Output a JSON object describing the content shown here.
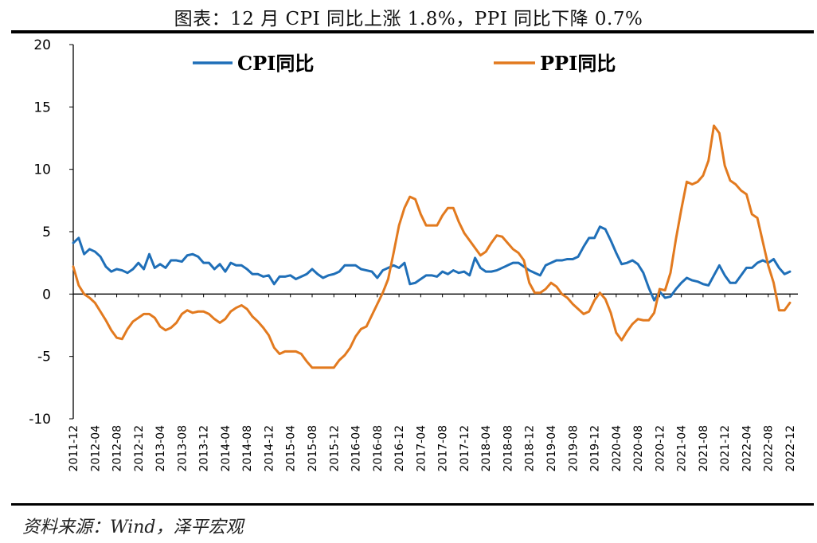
{
  "title": "图表：12 月 CPI 同比上涨 1.8%，PPI 同比下降 0.7%",
  "source": "资料来源：Wind，泽平宏观",
  "colors": {
    "cpi": "#1f6fb8",
    "ppi": "#e27a1f"
  },
  "chart_data": {
    "type": "line",
    "title": "",
    "xlabel": "",
    "ylabel": "",
    "ylim": [
      -10,
      20
    ],
    "yticks": [
      -10,
      -5,
      0,
      5,
      10,
      15,
      20
    ],
    "legend_position": "top",
    "grid": false,
    "x": [
      "2011-12",
      "2012-01",
      "2012-02",
      "2012-03",
      "2012-04",
      "2012-05",
      "2012-06",
      "2012-07",
      "2012-08",
      "2012-09",
      "2012-10",
      "2012-11",
      "2012-12",
      "2013-01",
      "2013-02",
      "2013-03",
      "2013-04",
      "2013-05",
      "2013-06",
      "2013-07",
      "2013-08",
      "2013-09",
      "2013-10",
      "2013-11",
      "2013-12",
      "2014-01",
      "2014-02",
      "2014-03",
      "2014-04",
      "2014-05",
      "2014-06",
      "2014-07",
      "2014-08",
      "2014-09",
      "2014-10",
      "2014-11",
      "2014-12",
      "2015-01",
      "2015-02",
      "2015-03",
      "2015-04",
      "2015-05",
      "2015-06",
      "2015-07",
      "2015-08",
      "2015-09",
      "2015-10",
      "2015-11",
      "2015-12",
      "2016-01",
      "2016-02",
      "2016-03",
      "2016-04",
      "2016-05",
      "2016-06",
      "2016-07",
      "2016-08",
      "2016-09",
      "2016-10",
      "2016-11",
      "2016-12",
      "2017-01",
      "2017-02",
      "2017-03",
      "2017-04",
      "2017-05",
      "2017-06",
      "2017-07",
      "2017-08",
      "2017-09",
      "2017-10",
      "2017-11",
      "2017-12",
      "2018-01",
      "2018-02",
      "2018-03",
      "2018-04",
      "2018-05",
      "2018-06",
      "2018-07",
      "2018-08",
      "2018-09",
      "2018-10",
      "2018-11",
      "2018-12",
      "2019-01",
      "2019-02",
      "2019-03",
      "2019-04",
      "2019-05",
      "2019-06",
      "2019-07",
      "2019-08",
      "2019-09",
      "2019-10",
      "2019-11",
      "2019-12",
      "2020-01",
      "2020-02",
      "2020-03",
      "2020-04",
      "2020-05",
      "2020-06",
      "2020-07",
      "2020-08",
      "2020-09",
      "2020-10",
      "2020-11",
      "2020-12",
      "2021-01",
      "2021-02",
      "2021-03",
      "2021-04",
      "2021-05",
      "2021-06",
      "2021-07",
      "2021-08",
      "2021-09",
      "2021-10",
      "2021-11",
      "2021-12",
      "2022-01",
      "2022-02",
      "2022-03",
      "2022-04",
      "2022-05",
      "2022-06",
      "2022-07",
      "2022-08",
      "2022-09",
      "2022-10",
      "2022-11",
      "2022-12"
    ],
    "xtick_labels": [
      "2011-12",
      "2012-04",
      "2012-08",
      "2012-12",
      "2013-04",
      "2013-08",
      "2013-12",
      "2014-04",
      "2014-08",
      "2014-12",
      "2015-04",
      "2015-08",
      "2015-12",
      "2016-04",
      "2016-08",
      "2016-12",
      "2017-04",
      "2017-08",
      "2017-12",
      "2018-04",
      "2018-08",
      "2018-12",
      "2019-04",
      "2019-08",
      "2019-12",
      "2020-04",
      "2020-08",
      "2020-12",
      "2021-04",
      "2021-08",
      "2021-12",
      "2022-04",
      "2022-08",
      "2022-12"
    ],
    "series": [
      {
        "name": "CPI同比",
        "color": "#1f6fb8",
        "values": [
          4.1,
          4.5,
          3.2,
          3.6,
          3.4,
          3.0,
          2.2,
          1.8,
          2.0,
          1.9,
          1.7,
          2.0,
          2.5,
          2.0,
          3.2,
          2.1,
          2.4,
          2.1,
          2.7,
          2.7,
          2.6,
          3.1,
          3.2,
          3.0,
          2.5,
          2.5,
          2.0,
          2.4,
          1.8,
          2.5,
          2.3,
          2.3,
          2.0,
          1.6,
          1.6,
          1.4,
          1.5,
          0.8,
          1.4,
          1.4,
          1.5,
          1.2,
          1.4,
          1.6,
          2.0,
          1.6,
          1.3,
          1.5,
          1.6,
          1.8,
          2.3,
          2.3,
          2.3,
          2.0,
          1.9,
          1.8,
          1.3,
          1.9,
          2.1,
          2.3,
          2.1,
          2.5,
          0.8,
          0.9,
          1.2,
          1.5,
          1.5,
          1.4,
          1.8,
          1.6,
          1.9,
          1.7,
          1.8,
          1.5,
          2.9,
          2.1,
          1.8,
          1.8,
          1.9,
          2.1,
          2.3,
          2.5,
          2.5,
          2.2,
          1.9,
          1.7,
          1.5,
          2.3,
          2.5,
          2.7,
          2.7,
          2.8,
          2.8,
          3.0,
          3.8,
          4.5,
          4.5,
          5.4,
          5.2,
          4.3,
          3.3,
          2.4,
          2.5,
          2.7,
          2.4,
          1.7,
          0.5,
          -0.5,
          0.2,
          -0.3,
          -0.2,
          0.4,
          0.9,
          1.3,
          1.1,
          1.0,
          0.8,
          0.7,
          1.5,
          2.3,
          1.5,
          0.9,
          0.9,
          1.5,
          2.1,
          2.1,
          2.5,
          2.7,
          2.5,
          2.8,
          2.1,
          1.6,
          1.8
        ]
      },
      {
        "name": "PPI同比",
        "color": "#e27a1f",
        "values": [
          2.2,
          0.7,
          0.0,
          -0.3,
          -0.7,
          -1.4,
          -2.1,
          -2.9,
          -3.5,
          -3.6,
          -2.8,
          -2.2,
          -1.9,
          -1.6,
          -1.6,
          -1.9,
          -2.6,
          -2.9,
          -2.7,
          -2.3,
          -1.6,
          -1.3,
          -1.5,
          -1.4,
          -1.4,
          -1.6,
          -2.0,
          -2.3,
          -2.0,
          -1.4,
          -1.1,
          -0.9,
          -1.2,
          -1.8,
          -2.2,
          -2.7,
          -3.3,
          -4.3,
          -4.8,
          -4.6,
          -4.6,
          -4.6,
          -4.8,
          -5.4,
          -5.9,
          -5.9,
          -5.9,
          -5.9,
          -5.9,
          -5.3,
          -4.9,
          -4.3,
          -3.4,
          -2.8,
          -2.6,
          -1.7,
          -0.8,
          0.1,
          1.2,
          3.3,
          5.5,
          6.9,
          7.8,
          7.6,
          6.4,
          5.5,
          5.5,
          5.5,
          6.3,
          6.9,
          6.9,
          5.8,
          4.9,
          4.3,
          3.7,
          3.1,
          3.4,
          4.1,
          4.7,
          4.6,
          4.1,
          3.6,
          3.3,
          2.7,
          0.9,
          0.1,
          0.1,
          0.4,
          0.9,
          0.6,
          0.0,
          -0.3,
          -0.8,
          -1.2,
          -1.6,
          -1.4,
          -0.5,
          0.1,
          -0.4,
          -1.5,
          -3.1,
          -3.7,
          -3.0,
          -2.4,
          -2.0,
          -2.1,
          -2.1,
          -1.5,
          0.4,
          0.3,
          1.7,
          4.4,
          6.8,
          9.0,
          8.8,
          9.0,
          9.5,
          10.7,
          13.5,
          12.9,
          10.3,
          9.1,
          8.8,
          8.3,
          8.0,
          6.4,
          6.1,
          4.2,
          2.3,
          0.9,
          -1.3,
          -1.3,
          -0.7
        ]
      }
    ]
  }
}
